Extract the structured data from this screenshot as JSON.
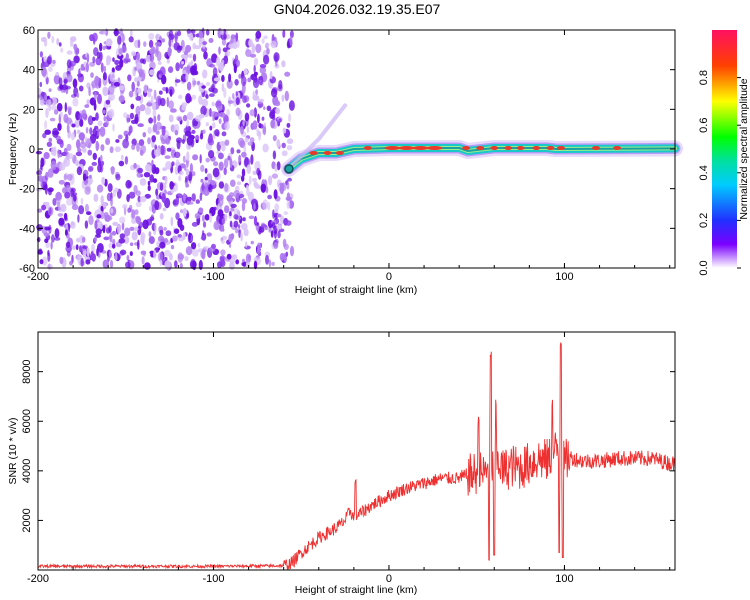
{
  "figure": {
    "title": "GN04.2026.032.19.35.E07"
  },
  "colors": {
    "snr_line": "#ee3030",
    "scatter_dark": "#6a10e0",
    "scatter_light": "#b07cf0",
    "track_core": "#e83a2a",
    "track_band": "#19c9c9"
  },
  "chart_data": [
    {
      "type": "heatmap",
      "name": "spectrogram",
      "xlabel": "Height of straight line (km)",
      "ylabel": "Frequency (Hz)",
      "xlim": [
        -200,
        163
      ],
      "ylim": [
        -60,
        60
      ],
      "xticks": [
        -200,
        -100,
        0,
        100
      ],
      "yticks": [
        60,
        40,
        20,
        0,
        -20,
        -40,
        -60
      ],
      "noise_region_x": [
        -200,
        -55
      ],
      "track": [
        {
          "x": -57,
          "y": -10
        },
        {
          "x": -50,
          "y": -5
        },
        {
          "x": -40,
          "y": -2
        },
        {
          "x": -30,
          "y": -2
        },
        {
          "x": -20,
          "y": 0
        },
        {
          "x": 0,
          "y": 0.5
        },
        {
          "x": 40,
          "y": 0.5
        },
        {
          "x": 45,
          "y": -1
        },
        {
          "x": 60,
          "y": 0.5
        },
        {
          "x": 90,
          "y": 0.5
        },
        {
          "x": 95,
          "y": 0
        },
        {
          "x": 163,
          "y": 0.3
        }
      ],
      "side_branch": [
        {
          "x": -55,
          "y": -8
        },
        {
          "x": -40,
          "y": 5
        },
        {
          "x": -25,
          "y": 22
        }
      ],
      "colorbar": {
        "label": "Normalized spectral amplitude",
        "ticks": [
          0.0,
          0.2,
          0.4,
          0.6,
          0.8
        ],
        "range": [
          0,
          1
        ]
      }
    },
    {
      "type": "line",
      "name": "snr",
      "xlabel": "Height of straight line (km)",
      "ylabel": "SNR (10 * v/v)",
      "xlim": [
        -200,
        163
      ],
      "ylim": [
        0,
        9600
      ],
      "xticks": [
        -200,
        -100,
        0,
        100
      ],
      "yticks": [
        2000,
        4000,
        6000,
        8000
      ],
      "series": [
        {
          "name": "SNR",
          "x": [
            -200,
            -150,
            -100,
            -60,
            -55,
            -50,
            -40,
            -30,
            -25,
            -22,
            -20,
            -10,
            0,
            10,
            20,
            30,
            40,
            50,
            55,
            58,
            60,
            62,
            65,
            70,
            75,
            80,
            85,
            90,
            95,
            97,
            98,
            99,
            100,
            102,
            105,
            110,
            120,
            130,
            140,
            150,
            160,
            163
          ],
          "values": [
            150,
            150,
            150,
            170,
            300,
            700,
            1300,
            1700,
            2000,
            2400,
            2100,
            2600,
            3000,
            3300,
            3500,
            3700,
            3700,
            3900,
            3900,
            4700,
            3700,
            4500,
            4000,
            4200,
            4100,
            4300,
            4500,
            4400,
            4800,
            4900,
            4500,
            4600,
            4200,
            4600,
            4500,
            4400,
            4400,
            4500,
            4500,
            4500,
            4300,
            4300
          ],
          "spikes": [
            {
              "x": -19,
              "value": 3800
            },
            {
              "x": 51,
              "value": 6300
            },
            {
              "x": 58,
              "value": 8900
            },
            {
              "x": 61,
              "value": 7000
            },
            {
              "x": 98,
              "value": 9600
            },
            {
              "x": 93,
              "value": 7200
            }
          ],
          "dips": [
            {
              "x": 57,
              "value": 400
            },
            {
              "x": 60,
              "value": 600
            },
            {
              "x": 97,
              "value": 700
            },
            {
              "x": 99,
              "value": 500
            }
          ]
        }
      ]
    }
  ]
}
